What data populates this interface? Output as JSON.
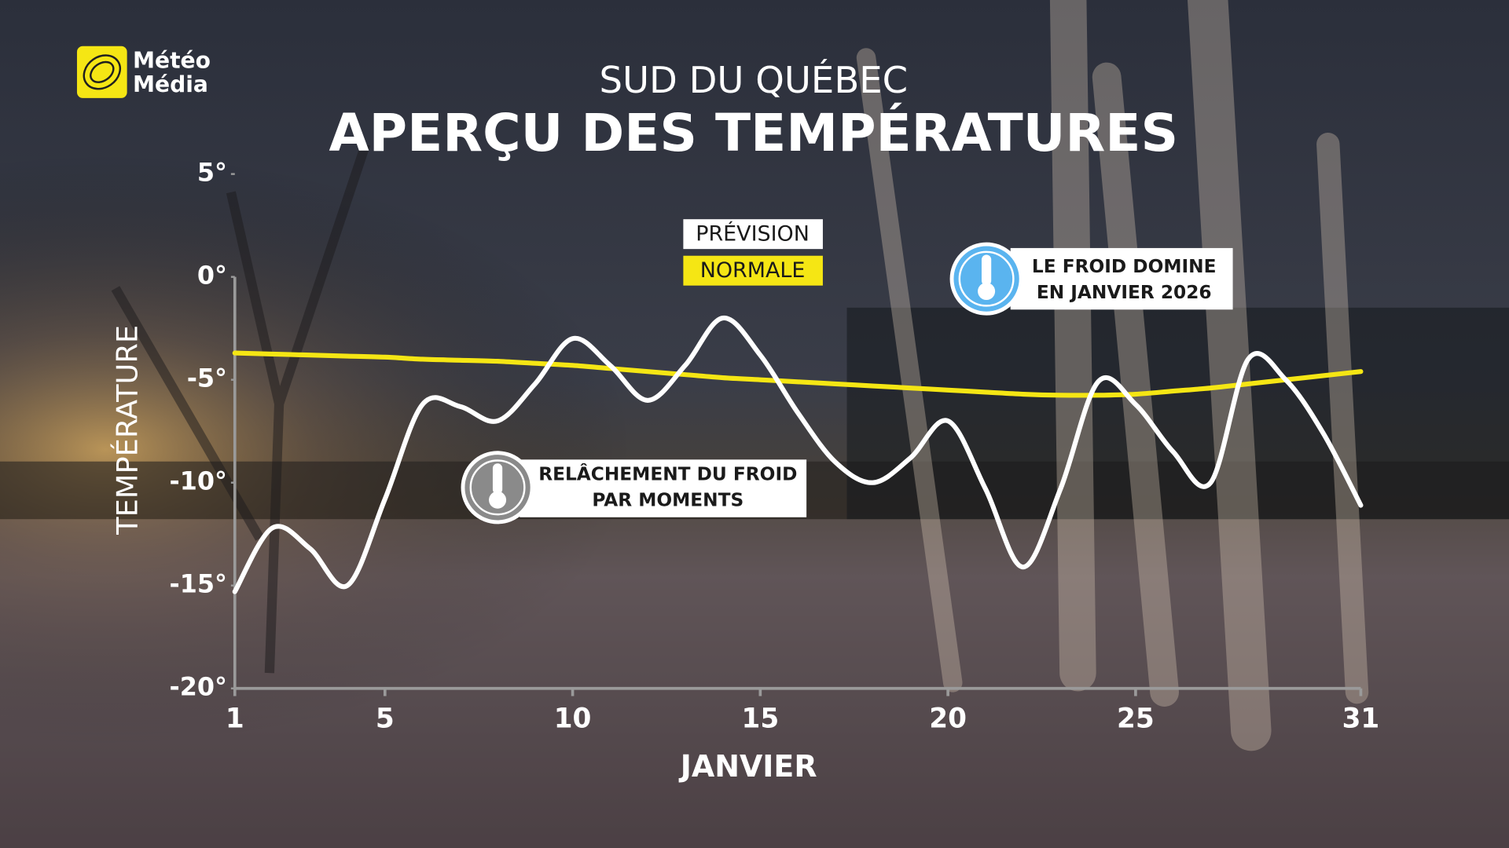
{
  "logo": [
    "Météo",
    "Média"
  ],
  "chart_data": {
    "type": "line",
    "subtitle": "SUD DU QUÉBEC",
    "title": "APERÇU DES TEMPÉRATURES",
    "x_label": "JANVIER",
    "y_label": "TEMPÉRATURE",
    "x": [
      1,
      2,
      3,
      4,
      5,
      6,
      7,
      8,
      9,
      10,
      11,
      12,
      13,
      14,
      15,
      16,
      17,
      18,
      19,
      20,
      21,
      22,
      23,
      24,
      25,
      26,
      27,
      28,
      29,
      30,
      31
    ],
    "series": [
      {
        "name": "PRÉVISION",
        "color": "#ffffff",
        "values": [
          -15.3,
          -12.2,
          -13.2,
          -15,
          -10.8,
          -6.2,
          -6.3,
          -7,
          -5.2,
          -3,
          -4.3,
          -6,
          -4.3,
          -2,
          -3.8,
          -6.6,
          -9,
          -10,
          -8.8,
          -7,
          -10.3,
          -14.1,
          -10.3,
          -5.1,
          -6.2,
          -8.5,
          -10,
          -4,
          -5,
          -7.6,
          -11.1
        ]
      },
      {
        "name": "NORMALE",
        "color": "#f5e614",
        "values": [
          -3.7,
          -3.75,
          -3.8,
          -3.85,
          -3.9,
          -4,
          -4.05,
          -4.1,
          -4.2,
          -4.3,
          -4.45,
          -4.6,
          -4.75,
          -4.9,
          -5,
          -5.1,
          -5.2,
          -5.3,
          -5.4,
          -5.5,
          -5.6,
          -5.7,
          -5.75,
          -5.75,
          -5.7,
          -5.55,
          -5.4,
          -5.2,
          -5,
          -4.8,
          -4.6
        ]
      }
    ],
    "xlim": [
      1,
      31
    ],
    "xticks": [
      1,
      5,
      10,
      15,
      20,
      25,
      31
    ],
    "ylim": [
      -20,
      5
    ],
    "yticks": [
      {
        "value": 5,
        "label": "5°"
      },
      {
        "value": 0,
        "label": "0°"
      },
      {
        "value": -5,
        "label": "-5°"
      },
      {
        "value": -10,
        "label": "-10°"
      },
      {
        "value": -15,
        "label": "-15°"
      },
      {
        "value": -20,
        "label": "-20°"
      }
    ],
    "annotations": [
      {
        "lines": [
          "RELÂCHEMENT DU FROID",
          "PAR MOMENTS"
        ]
      },
      {
        "lines": [
          "LE FROID DOMINE",
          "EN JANVIER 2026"
        ]
      }
    ]
  }
}
